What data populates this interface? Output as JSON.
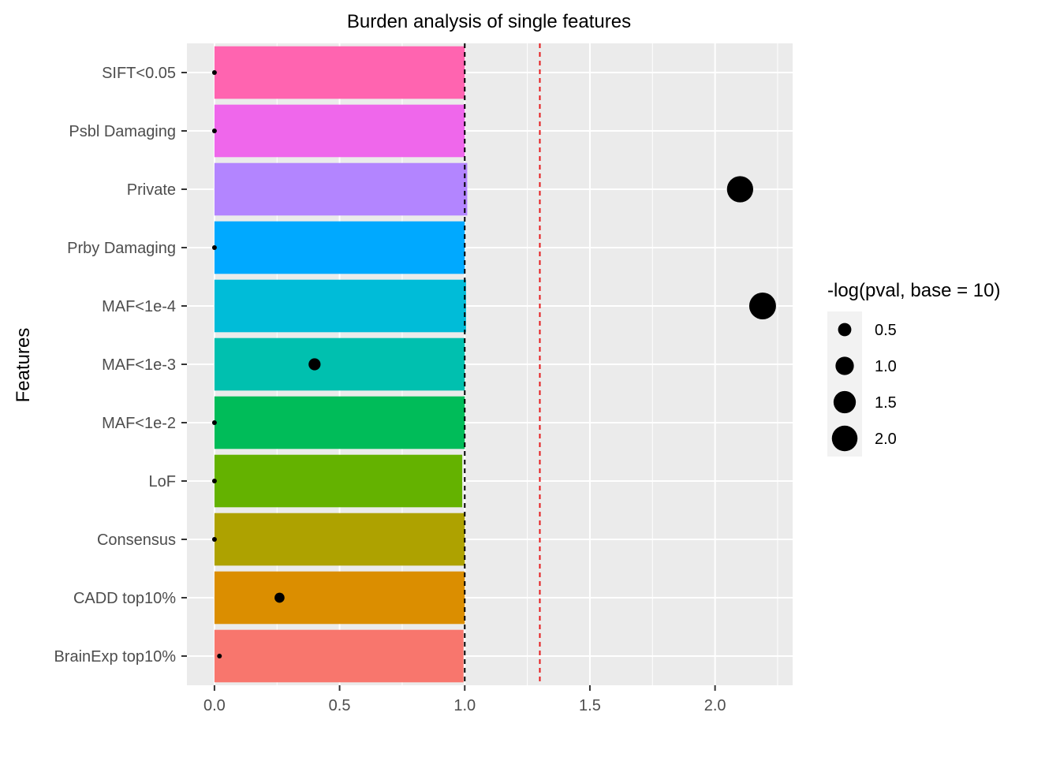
{
  "chart_data": {
    "type": "bar",
    "orientation": "horizontal",
    "title": "Burden analysis of single features",
    "xlabel": "",
    "ylabel": "Features",
    "xlim": [
      -0.11,
      2.31
    ],
    "xticks": [
      0.0,
      0.5,
      1.0,
      1.5,
      2.0
    ],
    "xtick_labels": [
      "0.0",
      "0.5",
      "1.0",
      "1.5",
      "2.0"
    ],
    "grid": true,
    "categories": [
      "SIFT<0.05",
      "Psbl Damaging",
      "Private",
      "Prby Damaging",
      "MAF<1e-4",
      "MAF<1e-3",
      "MAF<1e-2",
      "LoF",
      "Consensus",
      "CADD top10%",
      "BrainExp top10%"
    ],
    "bar_values": [
      1.0,
      1.0,
      1.01,
      1.0,
      1.005,
      1.0,
      1.0,
      0.99,
      1.0,
      1.0,
      0.995
    ],
    "bar_colors": [
      "#FF64B0",
      "#EF67EB",
      "#B385FF",
      "#00A9FF",
      "#00BCD8",
      "#00C0AF",
      "#00BC59",
      "#64B200",
      "#AEA200",
      "#DB8E00",
      "#F8766D"
    ],
    "points": {
      "x": [
        0.0,
        0.0,
        2.1,
        0.0,
        2.19,
        0.4,
        0.0,
        0.0,
        0.0,
        0.26,
        0.02
      ],
      "size": [
        0.02,
        0.02,
        2.1,
        0.02,
        2.19,
        0.4,
        0.02,
        0.02,
        0.02,
        0.26,
        0.02
      ],
      "color": "#000000"
    },
    "reference_lines": [
      {
        "x": 1.0,
        "color": "#000000",
        "style": "dashed"
      },
      {
        "x": 1.3,
        "color": "#E41A1C",
        "style": "dashed"
      }
    ],
    "legend": {
      "title": "-log(pval, base = 10)",
      "placement": "right",
      "entries": [
        "0.5",
        "1.0",
        "1.5",
        "2.0"
      ],
      "sizes": [
        0.5,
        1.0,
        1.5,
        2.0
      ]
    }
  }
}
